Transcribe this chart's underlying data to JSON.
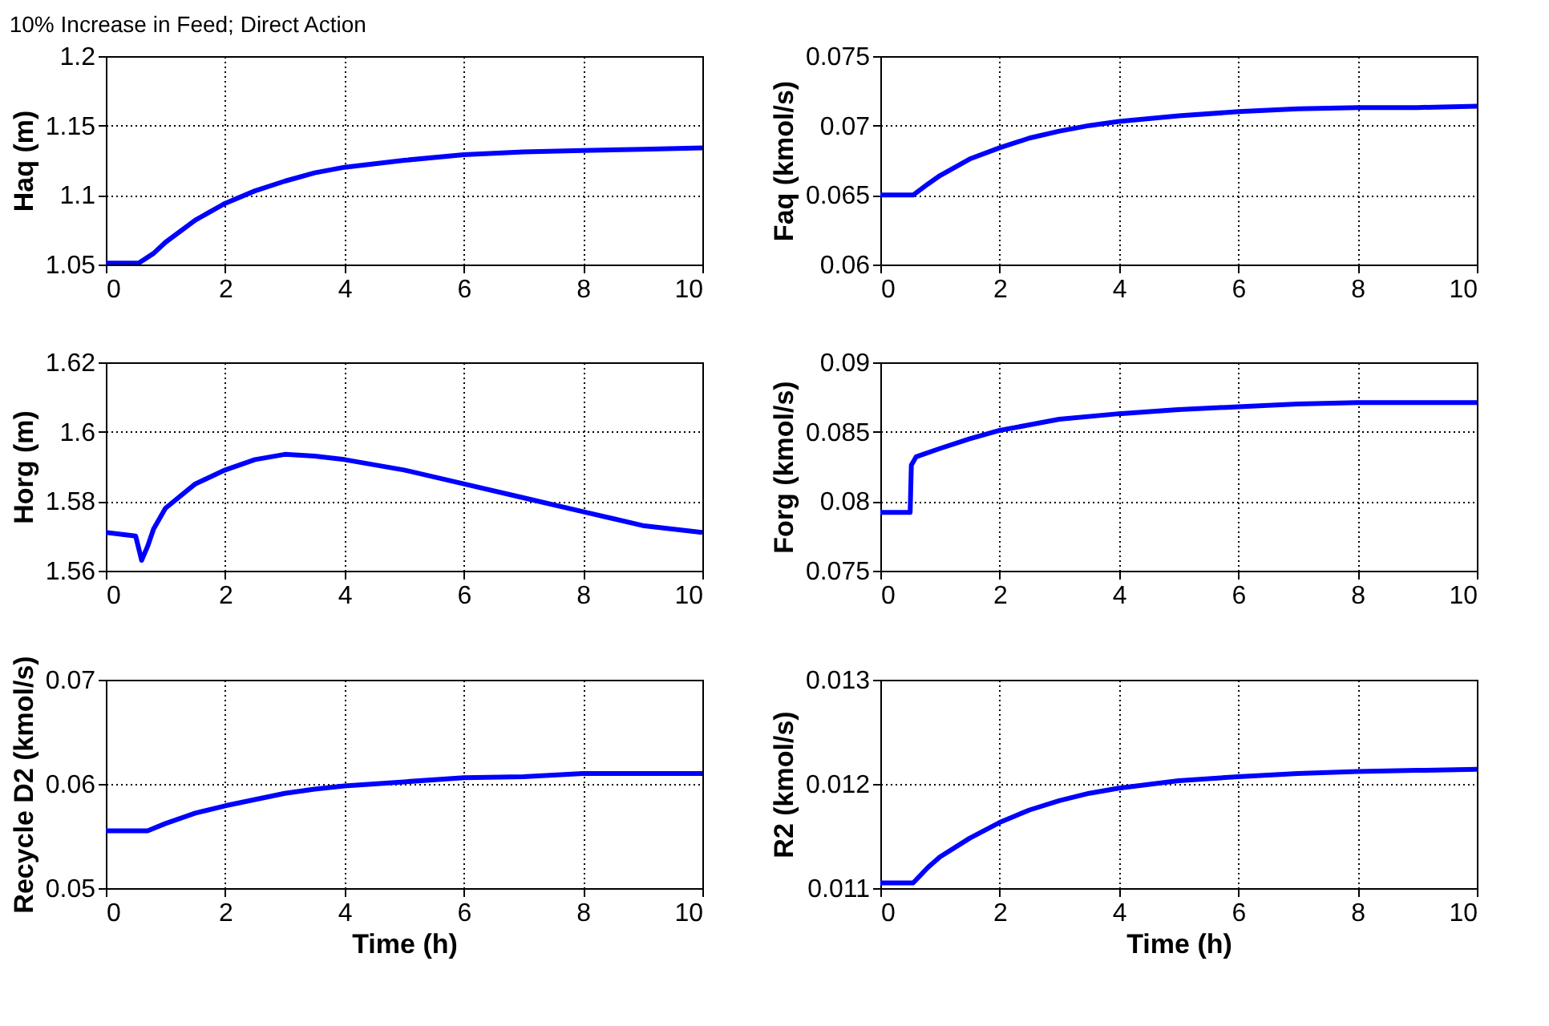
{
  "chart_data": [
    {
      "type": "line",
      "title": "10% Increase in Feed; Direct Action",
      "ylabel": "Haq (m)",
      "xlim": [
        0,
        10
      ],
      "xticks": [
        0,
        2,
        4,
        6,
        8,
        10
      ],
      "ylim": [
        1.05,
        1.2
      ],
      "yticks": [
        1.05,
        1.1,
        1.15,
        1.2
      ],
      "grid": true,
      "marker": "none",
      "line_style": "solid",
      "series": [
        {
          "color": "#0000ff",
          "x": [
            0,
            0.55,
            0.8,
            1,
            1.5,
            2,
            2.5,
            3,
            3.5,
            4,
            5,
            6,
            7,
            8,
            9,
            10
          ],
          "values": [
            1.051,
            1.051,
            1.058,
            1.066,
            1.082,
            1.094,
            1.103,
            1.11,
            1.116,
            1.12,
            1.125,
            1.129,
            1.131,
            1.132,
            1.133,
            1.134
          ]
        }
      ]
    },
    {
      "type": "line",
      "ylabel": "Faq (kmol/s)",
      "xlim": [
        0,
        10
      ],
      "xticks": [
        0,
        2,
        4,
        6,
        8,
        10
      ],
      "ylim": [
        0.06,
        0.075
      ],
      "yticks": [
        0.06,
        0.065,
        0.07,
        0.075
      ],
      "grid": true,
      "marker": "none",
      "line_style": "solid",
      "series": [
        {
          "color": "#0000ff",
          "x": [
            0,
            0.55,
            0.8,
            1,
            1.5,
            2,
            2.5,
            3,
            3.5,
            4,
            5,
            6,
            7,
            8,
            9,
            10
          ],
          "values": [
            0.065,
            0.065,
            0.0658,
            0.0664,
            0.0676,
            0.0684,
            0.0691,
            0.0696,
            0.07,
            0.0703,
            0.0707,
            0.071,
            0.0712,
            0.0713,
            0.0713,
            0.0714
          ]
        }
      ]
    },
    {
      "type": "line",
      "ylabel": "Horg (m)",
      "xlim": [
        0,
        10
      ],
      "xticks": [
        0,
        2,
        4,
        6,
        8,
        10
      ],
      "ylim": [
        1.56,
        1.62
      ],
      "yticks": [
        1.56,
        1.58,
        1.6,
        1.62
      ],
      "grid": true,
      "marker": "none",
      "line_style": "solid",
      "series": [
        {
          "color": "#0000ff",
          "x": [
            0,
            0.5,
            0.6,
            0.7,
            0.8,
            1,
            1.5,
            2,
            2.5,
            3,
            3.5,
            4,
            5,
            6,
            7,
            8,
            9,
            10
          ],
          "values": [
            1.571,
            1.57,
            1.563,
            1.567,
            1.572,
            1.578,
            1.585,
            1.589,
            1.592,
            1.5935,
            1.593,
            1.592,
            1.589,
            1.585,
            1.581,
            1.577,
            1.573,
            1.571
          ]
        }
      ]
    },
    {
      "type": "line",
      "ylabel": "Forg (kmol/s)",
      "xlim": [
        0,
        10
      ],
      "xticks": [
        0,
        2,
        4,
        6,
        8,
        10
      ],
      "ylim": [
        0.075,
        0.09
      ],
      "yticks": [
        0.075,
        0.08,
        0.085,
        0.09
      ],
      "grid": true,
      "marker": "none",
      "line_style": "solid",
      "series": [
        {
          "color": "#0000ff",
          "x": [
            0,
            0.5,
            0.52,
            0.6,
            1,
            1.5,
            2,
            2.5,
            3,
            4,
            5,
            6,
            7,
            8,
            10
          ],
          "values": [
            0.0792,
            0.0792,
            0.0826,
            0.0832,
            0.0838,
            0.0845,
            0.0851,
            0.0855,
            0.0859,
            0.0863,
            0.0866,
            0.0868,
            0.087,
            0.0871,
            0.0871
          ]
        }
      ]
    },
    {
      "type": "line",
      "xlabel": "Time (h)",
      "ylabel": "Recycle D2 (kmol/s)",
      "xlim": [
        0,
        10
      ],
      "xticks": [
        0,
        2,
        4,
        6,
        8,
        10
      ],
      "ylim": [
        0.05,
        0.07
      ],
      "yticks": [
        0.05,
        0.06,
        0.07
      ],
      "grid": true,
      "marker": "none",
      "line_style": "solid",
      "series": [
        {
          "color": "#0000ff",
          "x": [
            0,
            0.7,
            1,
            1.5,
            2,
            2.5,
            3,
            3.5,
            4,
            5,
            6,
            7,
            8,
            10
          ],
          "values": [
            0.0555,
            0.0555,
            0.0562,
            0.0572,
            0.0579,
            0.0585,
            0.0591,
            0.0595,
            0.0598,
            0.0602,
            0.0606,
            0.0607,
            0.061,
            0.061
          ]
        }
      ]
    },
    {
      "type": "line",
      "xlabel": "Time (h)",
      "ylabel": "R2 (kmol/s)",
      "xlim": [
        0,
        10
      ],
      "xticks": [
        0,
        2,
        4,
        6,
        8,
        10
      ],
      "ylim": [
        0.011,
        0.013
      ],
      "yticks": [
        0.011,
        0.012,
        0.013
      ],
      "grid": true,
      "marker": "none",
      "line_style": "solid",
      "series": [
        {
          "color": "#0000ff",
          "x": [
            0,
            0.55,
            0.8,
            1,
            1.5,
            2,
            2.5,
            3,
            3.5,
            4,
            5,
            6,
            7,
            8,
            9,
            10
          ],
          "values": [
            0.01105,
            0.01105,
            0.0112,
            0.0113,
            0.01148,
            0.01163,
            0.01175,
            0.01184,
            0.01191,
            0.01196,
            0.01203,
            0.01207,
            0.0121,
            0.01212,
            0.01213,
            0.01214
          ]
        }
      ]
    }
  ]
}
